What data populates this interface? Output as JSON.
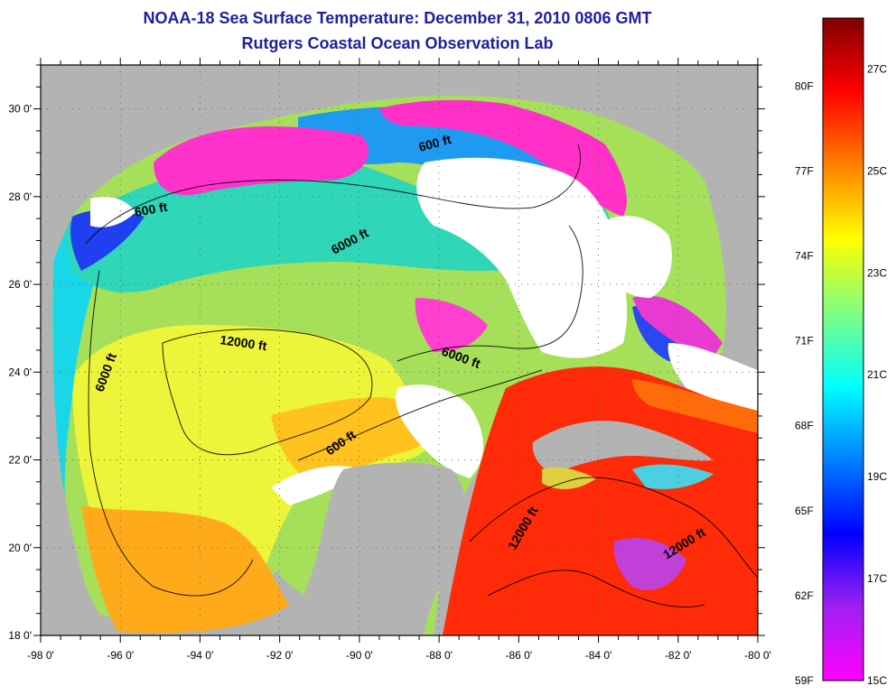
{
  "header": {
    "title": "NOAA-18 Sea Surface Temperature:  December 31, 2010 0806 GMT",
    "subtitle": "Rutgers Coastal Ocean Observation Lab"
  },
  "map": {
    "x_ticks": [
      "-98 0'",
      "-96 0'",
      "-94 0'",
      "-92 0'",
      "-90 0'",
      "-88 0'",
      "-86 0'",
      "-84 0'",
      "-82 0'",
      "-80 0'"
    ],
    "y_ticks": [
      "30 0'",
      "28 0'",
      "26 0'",
      "24 0'",
      "22 0'",
      "20 0'",
      "18 0'"
    ],
    "lon_range": [
      -98,
      -80
    ],
    "lat_range": [
      18,
      31
    ],
    "land_color": "#b3b3b3",
    "no_data_color": "#ffffff",
    "contour_labels": [
      "600 ft",
      "600 ft",
      "6000 ft",
      "12000 ft",
      "6000 ft",
      "6000 ft",
      "600 ft",
      "12000 ft",
      "12000 ft"
    ]
  },
  "colorbar": {
    "fahrenheit_labels": [
      "80F",
      "77F",
      "74F",
      "71F",
      "68F",
      "65F",
      "62F",
      "59F"
    ],
    "celsius_labels": [
      "27C",
      "25C",
      "23C",
      "21C",
      "19C",
      "17C",
      "15C"
    ],
    "celsius_range": [
      15,
      28
    ],
    "colors": [
      "#ff00ff",
      "#a020f0",
      "#0000ff",
      "#0080ff",
      "#00ffff",
      "#80ff80",
      "#ffff00",
      "#ff8000",
      "#ff0000",
      "#800000"
    ]
  }
}
